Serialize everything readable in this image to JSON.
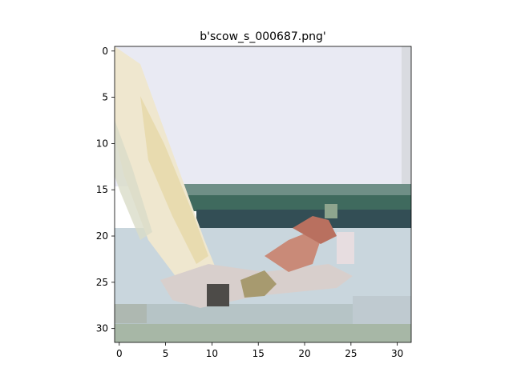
{
  "figure": {
    "title": "b'scow_s_000687.png'",
    "x_axis": {
      "ticks": [
        "0",
        "5",
        "10",
        "15",
        "20",
        "25",
        "30"
      ]
    },
    "y_axis": {
      "ticks": [
        "0",
        "5",
        "10",
        "15",
        "20",
        "25",
        "30"
      ]
    },
    "image": {
      "description_colors": {
        "sky": "#e9eaf3",
        "sail": "#efe7cf",
        "sail_shadow": "#e6d8a6",
        "treeline": "#3f6a5e",
        "water": "#c9d6dd",
        "hull_dark": "#5a5550",
        "person_skin": "#c98a78"
      }
    }
  }
}
